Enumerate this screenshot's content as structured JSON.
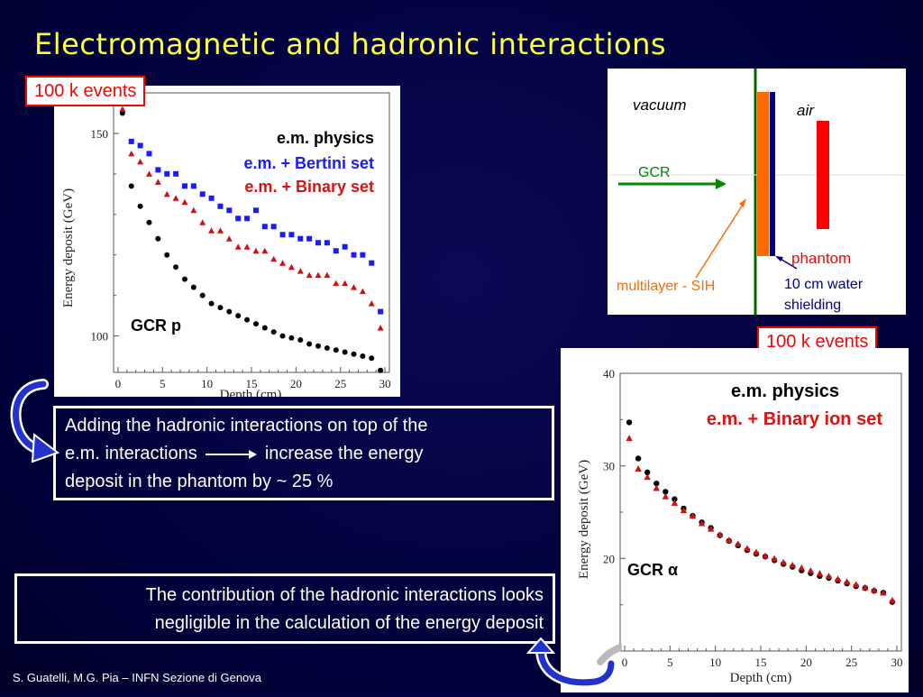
{
  "slide": {
    "title": "Electromagnetic and hadronic interactions",
    "footer": "S. Guatelli, M.G. Pia – INFN Sezione di Genova",
    "colors": {
      "background": "#00003a",
      "title": "#ffff40",
      "accent_red": "#ff0000",
      "blue_series": "#1a1aff"
    }
  },
  "badge_top_left": {
    "label": "100 k events"
  },
  "badge_right": {
    "label": "100 k events"
  },
  "note_hadronic": {
    "line1": "Adding the hadronic interactions on top of the",
    "line2a": "e.m. interactions",
    "line2b": "increase the energy",
    "line3": "deposit in the phantom by ~ 25 %"
  },
  "note_negligible": {
    "line1": "The contribution of the hadronic interactions looks",
    "line2": "negligible in the calculation of the energy deposit"
  },
  "icons": [
    "curved-arrow-icon",
    "curved-arrow-icon",
    "right-arrow-icon"
  ],
  "geometry_diagram": {
    "vacuum_label": "vacuum",
    "air_label": "air",
    "gcr_label": "GCR",
    "phantom_label": "phantom",
    "multilayer_label": "multilayer - SIH",
    "shielding_line1": "10 cm water",
    "shielding_line2": "shielding"
  },
  "chart_data": [
    {
      "type": "scatter",
      "plot_label": "GCR p",
      "xlabel": "Depth (cm)",
      "ylabel": "Energy deposit (GeV)",
      "xlim": [
        -0.5,
        30.5
      ],
      "ylim": [
        91,
        160
      ],
      "x_ticks": [
        0,
        5,
        10,
        15,
        20,
        25,
        30
      ],
      "y_ticks": [
        100,
        150
      ],
      "legend_position": "top-right",
      "series": [
        {
          "name": "e.m. physics",
          "color": "#000000",
          "marker": "circle",
          "x": [
            0.5,
            1.5,
            2.5,
            3.5,
            4.5,
            5.5,
            6.5,
            7.5,
            8.5,
            9.5,
            10.5,
            11.5,
            12.5,
            13.5,
            14.5,
            15.5,
            16.5,
            17.5,
            18.5,
            19.5,
            20.5,
            21.5,
            22.5,
            23.5,
            24.5,
            25.5,
            26.5,
            27.5,
            28.5,
            29.5
          ],
          "y": [
            155,
            137,
            132,
            128,
            124,
            120,
            117,
            114,
            112,
            110,
            108,
            107,
            106,
            105,
            104,
            103,
            102,
            101,
            100,
            99.5,
            99,
            98,
            97.5,
            97,
            96.5,
            96,
            95.5,
            95,
            94.5,
            91.5
          ]
        },
        {
          "name": "e.m. + Bertini set",
          "color": "#1a1aff",
          "marker": "square",
          "x": [
            0.5,
            1.5,
            2.5,
            3.5,
            4.5,
            5.5,
            6.5,
            7.5,
            8.5,
            9.5,
            10.5,
            11.5,
            12.5,
            13.5,
            14.5,
            15.5,
            16.5,
            17.5,
            18.5,
            19.5,
            20.5,
            21.5,
            22.5,
            23.5,
            24.5,
            25.5,
            26.5,
            27.5,
            28.5,
            29.5
          ],
          "y": [
            158,
            148,
            147,
            145,
            141,
            140,
            140,
            137,
            137,
            135,
            134,
            132,
            131,
            129,
            129,
            131,
            127,
            127,
            125,
            125,
            124,
            124,
            123,
            123,
            121,
            122,
            120,
            120,
            118,
            106
          ]
        },
        {
          "name": "e.m. + Binary set",
          "color": "#cc1111",
          "marker": "triangle",
          "x": [
            0.5,
            1.5,
            2.5,
            3.5,
            4.5,
            5.5,
            6.5,
            7.5,
            8.5,
            9.5,
            10.5,
            11.5,
            12.5,
            13.5,
            14.5,
            15.5,
            16.5,
            17.5,
            18.5,
            19.5,
            20.5,
            21.5,
            22.5,
            23.5,
            24.5,
            25.5,
            26.5,
            27.5,
            28.5,
            29.5
          ],
          "y": [
            156,
            145,
            143,
            140,
            138,
            135,
            134,
            133,
            131,
            128,
            126,
            126,
            124,
            122,
            122,
            121,
            121,
            119,
            118,
            117,
            116,
            115,
            115,
            115,
            113,
            113,
            112,
            111,
            108,
            102
          ]
        }
      ]
    },
    {
      "type": "scatter",
      "plot_label": "GCR α",
      "xlabel": "Depth (cm)",
      "ylabel": "Energy deposit (GeV)",
      "xlim": [
        -0.5,
        30.5
      ],
      "ylim": [
        10,
        40
      ],
      "x_ticks": [
        0,
        5,
        10,
        15,
        20,
        25,
        30
      ],
      "y_ticks": [
        20,
        30,
        40
      ],
      "legend_position": "top-right",
      "series": [
        {
          "name": "e.m. physics",
          "color": "#000000",
          "marker": "circle",
          "x": [
            0.5,
            1.5,
            2.5,
            3.5,
            4.5,
            5.5,
            6.5,
            7.5,
            8.5,
            9.5,
            10.5,
            11.5,
            12.5,
            13.5,
            14.5,
            15.5,
            16.5,
            17.5,
            18.5,
            19.5,
            20.5,
            21.5,
            22.5,
            23.5,
            24.5,
            25.5,
            26.5,
            27.5,
            28.5,
            29.5
          ],
          "y": [
            34.7,
            30.8,
            29.3,
            28.1,
            27.2,
            26.4,
            25.4,
            24.6,
            23.9,
            23.3,
            22.5,
            21.9,
            21.4,
            20.9,
            20.5,
            20.2,
            19.8,
            19.4,
            19.1,
            18.7,
            18.4,
            18.1,
            17.9,
            17.6,
            17.3,
            17.0,
            16.8,
            16.5,
            16.3,
            15.3
          ]
        },
        {
          "name": "e.m. + Binary ion set",
          "color": "#cc1111",
          "marker": "triangle",
          "x": [
            0.5,
            1.5,
            2.5,
            3.5,
            4.5,
            5.5,
            6.5,
            7.5,
            8.5,
            9.5,
            10.5,
            11.5,
            12.5,
            13.5,
            14.5,
            15.5,
            16.5,
            17.5,
            18.5,
            19.5,
            20.5,
            21.5,
            22.5,
            23.5,
            24.5,
            25.5,
            26.5,
            27.5,
            28.5,
            29.5
          ],
          "y": [
            33.0,
            29.7,
            28.8,
            27.6,
            26.7,
            26.0,
            25.2,
            24.6,
            23.8,
            23.2,
            22.6,
            22.0,
            21.6,
            21.1,
            20.7,
            20.3,
            20.0,
            19.6,
            19.3,
            19.0,
            18.7,
            18.4,
            18.1,
            17.8,
            17.5,
            17.2,
            16.9,
            16.6,
            16.3,
            15.5
          ]
        }
      ]
    }
  ]
}
